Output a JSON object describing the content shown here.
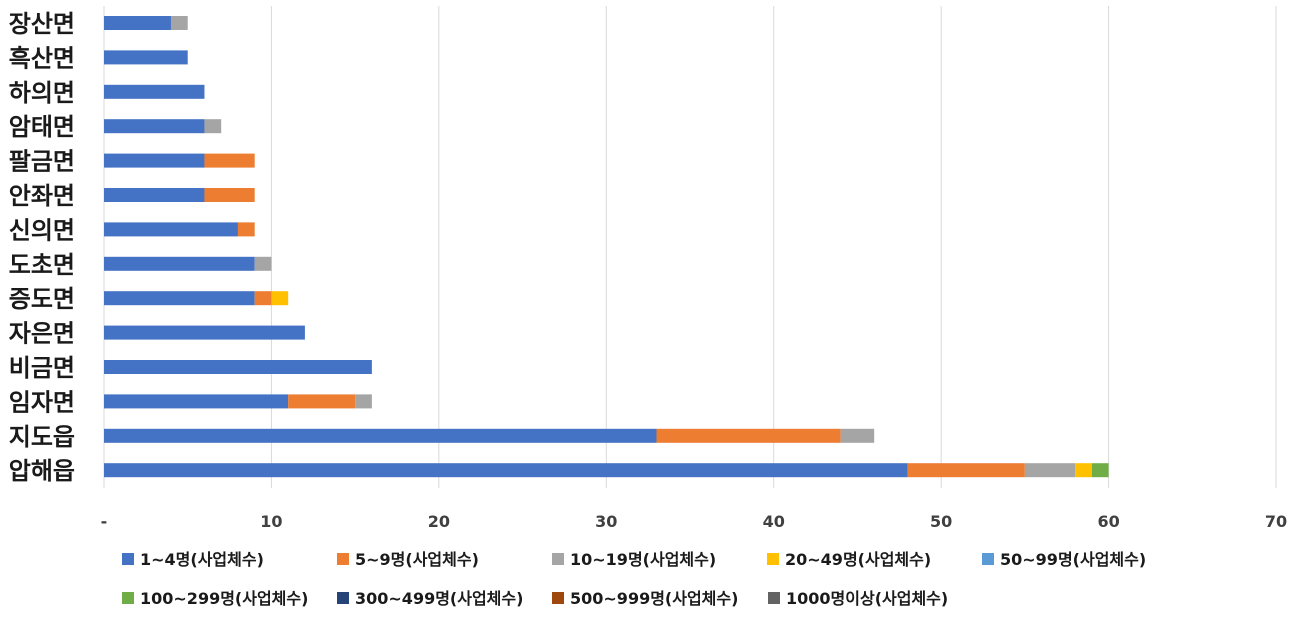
{
  "chart_data": {
    "type": "bar",
    "orientation": "horizontal",
    "stacked": true,
    "categories": [
      "장산면",
      "흑산면",
      "하의면",
      "암태면",
      "팔금면",
      "안좌면",
      "신의면",
      "도초면",
      "증도면",
      "자은면",
      "비금면",
      "임자면",
      "지도읍",
      "압해읍"
    ],
    "series": [
      {
        "name": "1~4명(사업체수)",
        "color": "#4472C4",
        "values": [
          4,
          5,
          6,
          6,
          6,
          6,
          8,
          9,
          9,
          12,
          16,
          11,
          33,
          48
        ]
      },
      {
        "name": "5~9명(사업체수)",
        "color": "#ED7D31",
        "values": [
          0,
          0,
          0,
          0,
          3,
          3,
          1,
          0,
          1,
          0,
          0,
          4,
          11,
          7
        ]
      },
      {
        "name": "10~19명(사업체수)",
        "color": "#A5A5A5",
        "values": [
          1,
          0,
          0,
          1,
          0,
          0,
          0,
          1,
          0,
          0,
          0,
          1,
          2,
          3
        ]
      },
      {
        "name": "20~49명(사업체수)",
        "color": "#FFC000",
        "values": [
          0,
          0,
          0,
          0,
          0,
          0,
          0,
          0,
          1,
          0,
          0,
          0,
          0,
          1
        ]
      },
      {
        "name": "50~99명(사업체수)",
        "color": "#5B9BD5",
        "values": [
          0,
          0,
          0,
          0,
          0,
          0,
          0,
          0,
          0,
          0,
          0,
          0,
          0,
          0
        ]
      },
      {
        "name": "100~299명(사업체수)",
        "color": "#70AD47",
        "values": [
          0,
          0,
          0,
          0,
          0,
          0,
          0,
          0,
          0,
          0,
          0,
          0,
          0,
          1
        ]
      },
      {
        "name": "300~499명(사업체수)",
        "color": "#264478",
        "values": [
          0,
          0,
          0,
          0,
          0,
          0,
          0,
          0,
          0,
          0,
          0,
          0,
          0,
          0
        ]
      },
      {
        "name": "500~999명(사업체수)",
        "color": "#9E480E",
        "values": [
          0,
          0,
          0,
          0,
          0,
          0,
          0,
          0,
          0,
          0,
          0,
          0,
          0,
          0
        ]
      },
      {
        "name": "1000명이상(사업체수)",
        "color": "#636363",
        "values": [
          0,
          0,
          0,
          0,
          0,
          0,
          0,
          0,
          0,
          0,
          0,
          0,
          0,
          0
        ]
      }
    ],
    "x_ticks": [
      {
        "value": 0,
        "label": "-"
      },
      {
        "value": 10,
        "label": "10"
      },
      {
        "value": 20,
        "label": "20"
      },
      {
        "value": 30,
        "label": "30"
      },
      {
        "value": 40,
        "label": "40"
      },
      {
        "value": 50,
        "label": "50"
      },
      {
        "value": 60,
        "label": "60"
      },
      {
        "value": 70,
        "label": "70"
      }
    ],
    "xlim": [
      0,
      70
    ],
    "title": "",
    "xlabel": "",
    "ylabel": "",
    "grid": "vertical",
    "legend_position": "bottom"
  }
}
